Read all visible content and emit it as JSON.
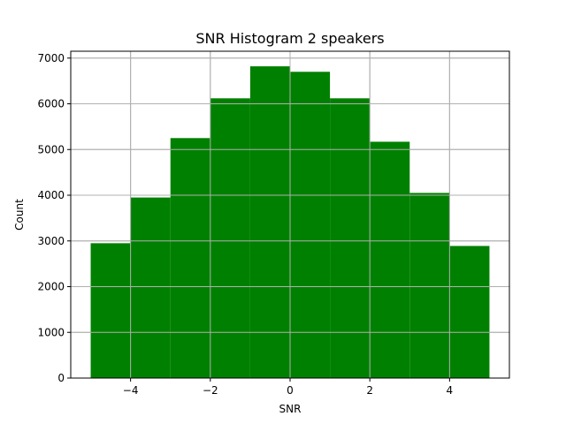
{
  "chart_data": {
    "type": "bar",
    "title": "SNR Histogram 2 speakers",
    "xlabel": "SNR",
    "ylabel": "Count",
    "bin_edges": [
      -5,
      -4,
      -3,
      -2,
      -1,
      0,
      1,
      2,
      3,
      4,
      5
    ],
    "values": [
      2950,
      3950,
      5250,
      6120,
      6820,
      6700,
      6120,
      5170,
      4050,
      2890
    ],
    "xlim": [
      -5.5,
      5.5
    ],
    "ylim": [
      0,
      7150
    ],
    "xticks": [
      -4,
      -2,
      0,
      2,
      4
    ],
    "xtick_labels": [
      "−4",
      "−2",
      "0",
      "2",
      "4"
    ],
    "yticks": [
      0,
      1000,
      2000,
      3000,
      4000,
      5000,
      6000,
      7000
    ],
    "ytick_labels": [
      "0",
      "1000",
      "2000",
      "3000",
      "4000",
      "5000",
      "6000",
      "7000"
    ],
    "grid": true,
    "bar_color": "#008000",
    "grid_color": "#b0b0b0"
  }
}
